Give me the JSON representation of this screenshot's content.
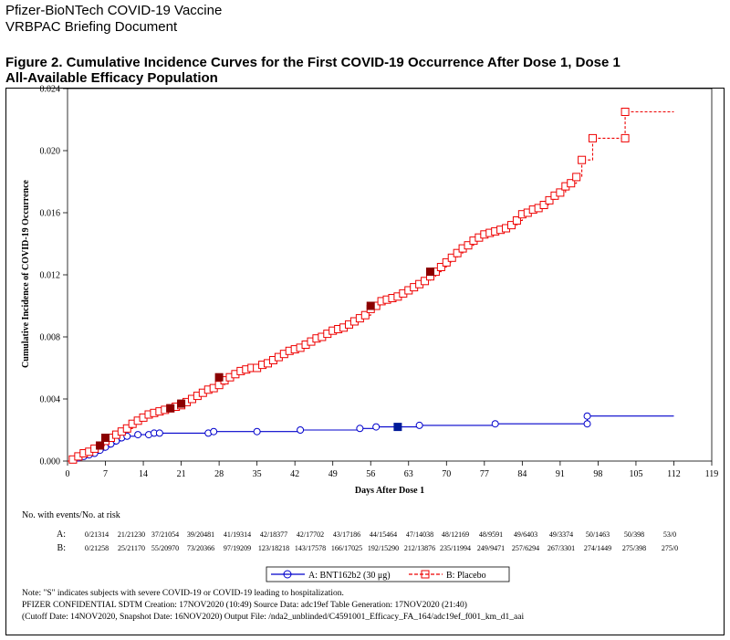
{
  "header": {
    "line1": "Pfizer-BioNTech COVID-19 Vaccine",
    "line2": "VRBPAC Briefing Document"
  },
  "figure_title": {
    "line1": "Figure 2. Cumulative Incidence Curves for the First COVID-19 Occurrence After Dose 1, Dose 1",
    "line2": "All-Available Efficacy Population"
  },
  "chart_data": {
    "type": "line",
    "xlabel": "Days After Dose 1",
    "ylabel": "Cumulative Incidence of COVID-19 Occurrence",
    "xlim": [
      0,
      119
    ],
    "ylim": [
      0,
      0.024
    ],
    "x_ticks": [
      0,
      7,
      14,
      21,
      28,
      35,
      42,
      49,
      56,
      63,
      70,
      77,
      84,
      91,
      98,
      105,
      112,
      119
    ],
    "y_ticks": [
      "0.000",
      "0.004",
      "0.008",
      "0.012",
      "0.016",
      "0.020",
      "0.024"
    ],
    "grid": false,
    "series": [
      {
        "name": "A: BNT162b2 (30 μg)",
        "color": "#0000cc",
        "line_style": "solid",
        "marker": "circle",
        "points": [
          [
            0,
            0
          ],
          [
            1,
            0.0001
          ],
          [
            2,
            0.0002
          ],
          [
            3,
            0.0003
          ],
          [
            4,
            0.0004
          ],
          [
            5,
            0.0005
          ],
          [
            6,
            0.0007
          ],
          [
            7,
            0.0009
          ],
          [
            8,
            0.0011
          ],
          [
            9,
            0.0013
          ],
          [
            10,
            0.0015
          ],
          [
            11,
            0.0016
          ],
          [
            13,
            0.0017
          ],
          [
            15,
            0.0017
          ],
          [
            16,
            0.0018
          ],
          [
            17,
            0.0018
          ],
          [
            26,
            0.0018
          ],
          [
            27,
            0.0019
          ],
          [
            35,
            0.0019
          ],
          [
            43,
            0.002
          ],
          [
            54,
            0.0021
          ],
          [
            57,
            0.0022
          ],
          [
            61,
            0.0022
          ],
          [
            65,
            0.0023
          ],
          [
            79,
            0.0024
          ],
          [
            96,
            0.0024
          ],
          [
            96,
            0.0029
          ],
          [
            112,
            0.0029
          ]
        ],
        "severe_points": [
          [
            61,
            0.0022
          ]
        ]
      },
      {
        "name": "B: Placebo",
        "color": "#ee0000",
        "line_style": "dashed",
        "marker": "square",
        "points": [
          [
            0,
            0
          ],
          [
            1,
            0.0001
          ],
          [
            2,
            0.0003
          ],
          [
            3,
            0.0005
          ],
          [
            4,
            0.0006
          ],
          [
            5,
            0.0008
          ],
          [
            6,
            0.001
          ],
          [
            7,
            0.0013
          ],
          [
            8,
            0.0015
          ],
          [
            9,
            0.0017
          ],
          [
            10,
            0.0019
          ],
          [
            11,
            0.0021
          ],
          [
            12,
            0.0024
          ],
          [
            13,
            0.0026
          ],
          [
            14,
            0.0028
          ],
          [
            15,
            0.003
          ],
          [
            16,
            0.0031
          ],
          [
            17,
            0.0032
          ],
          [
            18,
            0.0033
          ],
          [
            19,
            0.0034
          ],
          [
            20,
            0.0035
          ],
          [
            21,
            0.0036
          ],
          [
            22,
            0.0038
          ],
          [
            23,
            0.004
          ],
          [
            24,
            0.0042
          ],
          [
            25,
            0.0044
          ],
          [
            26,
            0.0046
          ],
          [
            27,
            0.0047
          ],
          [
            28,
            0.0049
          ],
          [
            29,
            0.0052
          ],
          [
            30,
            0.0054
          ],
          [
            31,
            0.0056
          ],
          [
            32,
            0.0058
          ],
          [
            33,
            0.0059
          ],
          [
            34,
            0.006
          ],
          [
            35,
            0.006
          ],
          [
            36,
            0.0062
          ],
          [
            37,
            0.0063
          ],
          [
            38,
            0.0065
          ],
          [
            39,
            0.0067
          ],
          [
            40,
            0.0069
          ],
          [
            41,
            0.0071
          ],
          [
            42,
            0.0072
          ],
          [
            43,
            0.0073
          ],
          [
            44,
            0.0075
          ],
          [
            45,
            0.0077
          ],
          [
            46,
            0.0079
          ],
          [
            47,
            0.008
          ],
          [
            48,
            0.0082
          ],
          [
            49,
            0.0084
          ],
          [
            50,
            0.0085
          ],
          [
            51,
            0.0086
          ],
          [
            52,
            0.0088
          ],
          [
            53,
            0.009
          ],
          [
            54,
            0.0092
          ],
          [
            55,
            0.0094
          ],
          [
            56,
            0.0098
          ],
          [
            57,
            0.01
          ],
          [
            58,
            0.0103
          ],
          [
            59,
            0.0104
          ],
          [
            60,
            0.0105
          ],
          [
            61,
            0.0106
          ],
          [
            62,
            0.0108
          ],
          [
            63,
            0.011
          ],
          [
            64,
            0.0112
          ],
          [
            65,
            0.0114
          ],
          [
            66,
            0.0116
          ],
          [
            67,
            0.0119
          ],
          [
            68,
            0.0122
          ],
          [
            69,
            0.0125
          ],
          [
            70,
            0.0128
          ],
          [
            71,
            0.0131
          ],
          [
            72,
            0.0134
          ],
          [
            73,
            0.0137
          ],
          [
            74,
            0.0139
          ],
          [
            75,
            0.0142
          ],
          [
            76,
            0.0144
          ],
          [
            77,
            0.0146
          ],
          [
            78,
            0.0147
          ],
          [
            79,
            0.0148
          ],
          [
            80,
            0.0149
          ],
          [
            81,
            0.015
          ],
          [
            82,
            0.0152
          ],
          [
            83,
            0.0155
          ],
          [
            84,
            0.0159
          ],
          [
            85,
            0.016
          ],
          [
            86,
            0.0162
          ],
          [
            87,
            0.0163
          ],
          [
            88,
            0.0165
          ],
          [
            89,
            0.0168
          ],
          [
            90,
            0.0171
          ],
          [
            91,
            0.0173
          ],
          [
            92,
            0.0177
          ],
          [
            93,
            0.0179
          ],
          [
            94,
            0.0183
          ],
          [
            95,
            0.0194
          ],
          [
            97,
            0.0208
          ],
          [
            103,
            0.0208
          ],
          [
            103,
            0.0225
          ],
          [
            112,
            0.0225
          ]
        ],
        "severe_points": [
          [
            6,
            0.001
          ],
          [
            7,
            0.0015
          ],
          [
            19,
            0.0034
          ],
          [
            21,
            0.0037
          ],
          [
            28,
            0.0054
          ],
          [
            56,
            0.01
          ],
          [
            67,
            0.0122
          ]
        ]
      }
    ]
  },
  "risk_table": {
    "title": "No. with events/No. at risk",
    "rows": [
      {
        "label": "A:",
        "values": [
          "0/21314",
          "21/21230",
          "37/21054",
          "39/20481",
          "41/19314",
          "42/18377",
          "42/17702",
          "43/17186",
          "44/15464",
          "47/14038",
          "48/12169",
          "48/9591",
          "49/6403",
          "49/3374",
          "50/1463",
          "50/398",
          "53/0"
        ]
      },
      {
        "label": "B:",
        "values": [
          "0/21258",
          "25/21170",
          "55/20970",
          "73/20366",
          "97/19209",
          "123/18218",
          "143/17578",
          "166/17025",
          "192/15290",
          "212/13876",
          "235/11994",
          "249/9471",
          "257/6294",
          "267/3301",
          "274/1449",
          "275/398",
          "275/0"
        ]
      }
    ]
  },
  "legend": {
    "a_label": "A: BNT162b2 (30 μg)",
    "b_label": "B: Placebo"
  },
  "notes": {
    "line1": "Note: \"S\" indicates subjects with severe COVID-19 or COVID-19 leading to hospitalization.",
    "line2": "PFIZER CONFIDENTIAL  SDTM Creation: 17NOV2020 (10:49)  Source Data: adc19ef  Table Generation: 17NOV2020 (21:40)",
    "line3": "(Cutoff Date: 14NOV2020, Snapshot Date: 16NOV2020) Output File: /nda2_unblinded/C4591001_Efficacy_FA_164/adc19ef_f001_km_d1_aai"
  }
}
